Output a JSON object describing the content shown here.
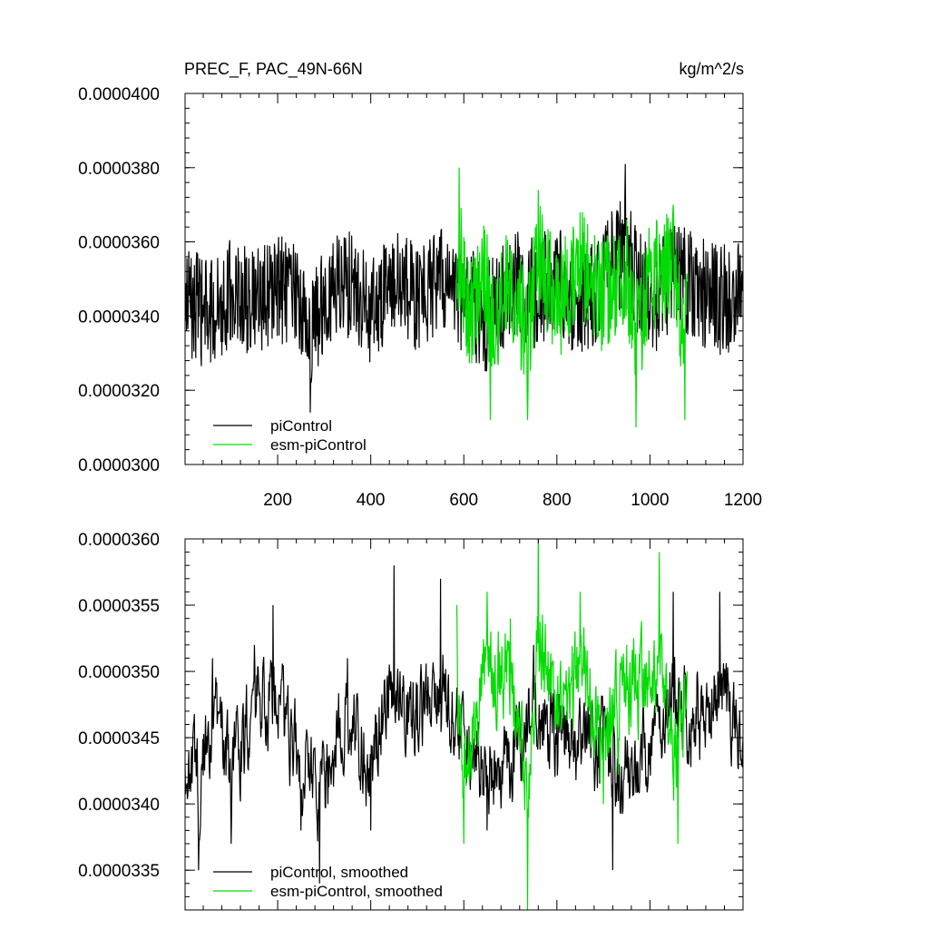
{
  "chart_data": [
    {
      "type": "line",
      "title": "PREC_F, PAC_49N-66N",
      "units": "kg/m^2/s",
      "xlim": [
        1,
        1200
      ],
      "ylim": [
        3e-05,
        4e-05
      ],
      "x_ticks": [
        200,
        400,
        600,
        800,
        1000,
        1200
      ],
      "x_tick_labels": [
        "200",
        "400",
        "600",
        "800",
        "1000",
        "1200"
      ],
      "y_ticks": [
        3e-05,
        3.2e-05,
        3.4e-05,
        3.6e-05,
        3.8e-05,
        4e-05
      ],
      "y_tick_labels": [
        "0.0000300",
        "0.0000320",
        "0.0000340",
        "0.0000360",
        "0.0000380",
        "0.0000400"
      ],
      "grid": false,
      "legend_position": "bottom-left",
      "series": [
        {
          "name": "piControl",
          "color": "#000000",
          "x_start": 1,
          "x_end": 1200,
          "approx_mean": 3.45e-05,
          "approx_range": [
            3.13e-05,
            3.81e-05
          ],
          "sampled_points": [
            [
              1,
              3.44e-05
            ],
            [
              50,
              3.31e-05
            ],
            [
              100,
              3.5e-05
            ],
            [
              150,
              3.38e-05
            ],
            [
              200,
              3.52e-05
            ],
            [
              250,
              3.41e-05
            ],
            [
              270,
              3.14e-05
            ],
            [
              300,
              3.48e-05
            ],
            [
              350,
              3.56e-05
            ],
            [
              400,
              3.35e-05
            ],
            [
              450,
              3.58e-05
            ],
            [
              500,
              3.42e-05
            ],
            [
              550,
              3.6e-05
            ],
            [
              600,
              3.44e-05
            ],
            [
              650,
              3.3e-05
            ],
            [
              700,
              3.56e-05
            ],
            [
              750,
              3.48e-05
            ],
            [
              800,
              3.61e-05
            ],
            [
              850,
              3.34e-05
            ],
            [
              900,
              3.62e-05
            ],
            [
              947,
              3.81e-05
            ],
            [
              1000,
              3.38e-05
            ],
            [
              1050,
              3.66e-05
            ],
            [
              1100,
              3.51e-05
            ],
            [
              1150,
              3.43e-05
            ],
            [
              1200,
              3.47e-05
            ]
          ]
        },
        {
          "name": "esm-piControl",
          "color": "#00dd00",
          "x_start": 585,
          "x_end": 1080,
          "approx_mean": 3.46e-05,
          "approx_range": [
            3.1e-05,
            3.8e-05
          ],
          "sampled_points": [
            [
              585,
              3.56e-05
            ],
            [
              590,
              3.8e-05
            ],
            [
              610,
              3.3e-05
            ],
            [
              650,
              3.62e-05
            ],
            [
              657,
              3.12e-05
            ],
            [
              700,
              3.58e-05
            ],
            [
              737,
              3.12e-05
            ],
            [
              760,
              3.74e-05
            ],
            [
              800,
              3.36e-05
            ],
            [
              850,
              3.68e-05
            ],
            [
              900,
              3.44e-05
            ],
            [
              950,
              3.66e-05
            ],
            [
              970,
              3.1e-05
            ],
            [
              1000,
              3.58e-05
            ],
            [
              1050,
              3.7e-05
            ],
            [
              1075,
              3.12e-05
            ],
            [
              1080,
              3.5e-05
            ]
          ]
        }
      ]
    },
    {
      "type": "line",
      "xlim": [
        1,
        1200
      ],
      "ylim": [
        3.32e-05,
        3.6e-05
      ],
      "y_ticks": [
        3.35e-05,
        3.4e-05,
        3.45e-05,
        3.5e-05,
        3.55e-05,
        3.6e-05
      ],
      "y_tick_labels": [
        "0.0000335",
        "0.0000340",
        "0.0000345",
        "0.0000350",
        "0.0000355",
        "0.0000360"
      ],
      "grid": false,
      "legend_position": "bottom-left",
      "series": [
        {
          "name": "piControl, smoothed",
          "color": "#000000",
          "x_start": 1,
          "x_end": 1200,
          "approx_mean": 3.45e-05,
          "approx_range": [
            3.34e-05,
            3.58e-05
          ],
          "sampled_points": [
            [
              1,
              3.43e-05
            ],
            [
              30,
              3.35e-05
            ],
            [
              60,
              3.51e-05
            ],
            [
              100,
              3.37e-05
            ],
            [
              150,
              3.52e-05
            ],
            [
              190,
              3.55e-05
            ],
            [
              250,
              3.38e-05
            ],
            [
              290,
              3.33e-05
            ],
            [
              350,
              3.51e-05
            ],
            [
              400,
              3.38e-05
            ],
            [
              450,
              3.58e-05
            ],
            [
              500,
              3.49e-05
            ],
            [
              550,
              3.57e-05
            ],
            [
              600,
              3.46e-05
            ],
            [
              650,
              3.38e-05
            ],
            [
              700,
              3.41e-05
            ],
            [
              750,
              3.52e-05
            ],
            [
              800,
              3.46e-05
            ],
            [
              900,
              3.43e-05
            ],
            [
              920,
              3.35e-05
            ],
            [
              1000,
              3.43e-05
            ],
            [
              1050,
              3.56e-05
            ],
            [
              1100,
              3.46e-05
            ],
            [
              1150,
              3.56e-05
            ],
            [
              1200,
              3.45e-05
            ]
          ]
        },
        {
          "name": "esm-piControl, smoothed",
          "color": "#00dd00",
          "x_start": 585,
          "x_end": 1080,
          "approx_mean": 3.47e-05,
          "approx_range": [
            3.32e-05,
            3.6e-05
          ],
          "sampled_points": [
            [
              585,
              3.55e-05
            ],
            [
              600,
              3.37e-05
            ],
            [
              650,
              3.56e-05
            ],
            [
              700,
              3.54e-05
            ],
            [
              737,
              3.32e-05
            ],
            [
              760,
              3.6e-05
            ],
            [
              800,
              3.46e-05
            ],
            [
              850,
              3.56e-05
            ],
            [
              900,
              3.4e-05
            ],
            [
              950,
              3.52e-05
            ],
            [
              1000,
              3.49e-05
            ],
            [
              1020,
              3.59e-05
            ],
            [
              1060,
              3.37e-05
            ],
            [
              1080,
              3.5e-05
            ]
          ]
        }
      ]
    }
  ]
}
